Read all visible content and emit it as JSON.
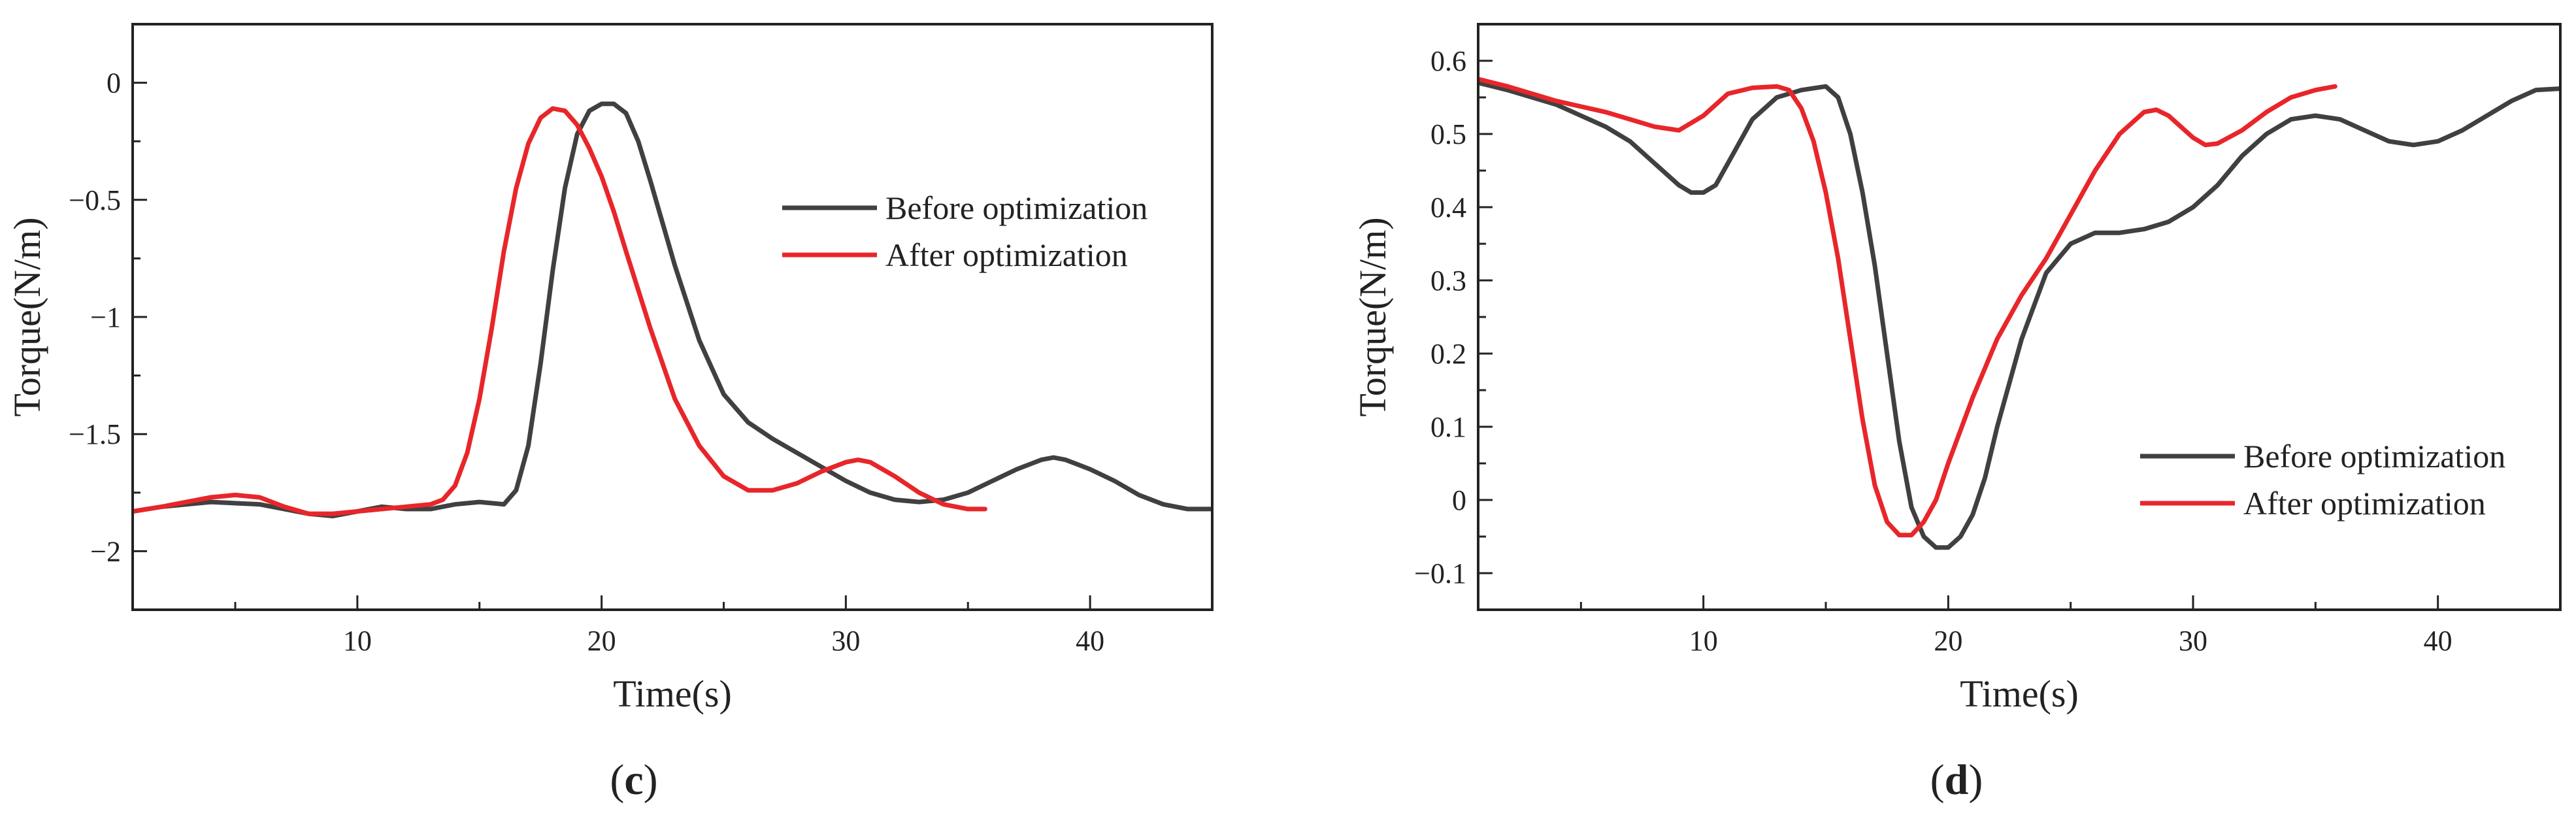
{
  "colors": {
    "before": "#404040",
    "after": "#e8262a",
    "axis": "#222222"
  },
  "chart_data": [
    {
      "type": "line",
      "panel": "c",
      "panel_label": {
        "open": "(",
        "letter": "c",
        "close": ")"
      },
      "xlabel": "Time(s)",
      "ylabel": "Torque(N/m)",
      "xlim": [
        0.8,
        45
      ],
      "ylim": [
        -2.25,
        0.25
      ],
      "xticks": [
        10,
        20,
        30,
        40
      ],
      "yticks": [
        0,
        -0.5,
        -1,
        -1.5,
        -2
      ],
      "ytick_labels": [
        "0",
        "−0.5",
        "−1",
        "−1.5",
        "−2"
      ],
      "legend": {
        "position": "upper-right",
        "entries": [
          "Before optimization",
          "After optimization"
        ]
      },
      "series": [
        {
          "name": "Before optimization",
          "x": [
            0.8,
            2,
            4,
            6,
            8,
            9,
            10,
            11,
            12,
            13,
            14,
            15,
            16,
            16.5,
            17,
            17.5,
            18,
            18.5,
            19,
            19.5,
            20,
            20.5,
            21,
            21.5,
            22,
            23,
            24,
            25,
            26,
            27,
            28,
            29,
            30,
            31,
            32,
            33,
            34,
            35,
            36,
            37,
            38,
            38.5,
            39,
            40,
            41,
            42,
            43,
            44,
            45
          ],
          "y": [
            -1.83,
            -1.81,
            -1.79,
            -1.8,
            -1.84,
            -1.85,
            -1.83,
            -1.81,
            -1.82,
            -1.82,
            -1.8,
            -1.79,
            -1.8,
            -1.74,
            -1.55,
            -1.2,
            -0.8,
            -0.45,
            -0.22,
            -0.12,
            -0.09,
            -0.09,
            -0.13,
            -0.25,
            -0.42,
            -0.78,
            -1.1,
            -1.33,
            -1.45,
            -1.52,
            -1.58,
            -1.64,
            -1.7,
            -1.75,
            -1.78,
            -1.79,
            -1.78,
            -1.75,
            -1.7,
            -1.65,
            -1.61,
            -1.6,
            -1.61,
            -1.65,
            -1.7,
            -1.76,
            -1.8,
            -1.82,
            -1.82
          ]
        },
        {
          "name": "After optimization",
          "x": [
            0.8,
            2,
            3,
            4,
            5,
            6,
            7,
            8,
            9,
            10,
            11,
            12,
            13,
            13.5,
            14,
            14.5,
            15,
            15.5,
            16,
            16.5,
            17,
            17.5,
            18,
            18.5,
            19,
            19.5,
            20,
            20.5,
            21,
            22,
            23,
            24,
            25,
            26,
            27,
            28,
            29,
            30,
            30.5,
            31,
            32,
            33,
            34,
            35,
            35.7
          ],
          "y": [
            -1.83,
            -1.81,
            -1.79,
            -1.77,
            -1.76,
            -1.77,
            -1.81,
            -1.84,
            -1.84,
            -1.83,
            -1.82,
            -1.81,
            -1.8,
            -1.78,
            -1.72,
            -1.58,
            -1.35,
            -1.05,
            -0.72,
            -0.45,
            -0.26,
            -0.15,
            -0.11,
            -0.12,
            -0.18,
            -0.28,
            -0.4,
            -0.55,
            -0.72,
            -1.05,
            -1.35,
            -1.55,
            -1.68,
            -1.74,
            -1.74,
            -1.71,
            -1.66,
            -1.62,
            -1.61,
            -1.62,
            -1.68,
            -1.75,
            -1.8,
            -1.82,
            -1.82
          ]
        }
      ]
    },
    {
      "type": "line",
      "panel": "d",
      "panel_label": {
        "open": "(",
        "letter": "d",
        "close": ")"
      },
      "xlabel": "Time(s)",
      "ylabel": "Torque(N/m)",
      "xlim": [
        0.8,
        45
      ],
      "ylim": [
        -0.15,
        0.65
      ],
      "xticks": [
        10,
        20,
        30,
        40
      ],
      "yticks": [
        0.6,
        0.5,
        0.4,
        0.3,
        0.2,
        0.1,
        0,
        -0.1
      ],
      "ytick_labels": [
        "0.6",
        "0.5",
        "0.4",
        "0.3",
        "0.2",
        "0.1",
        "0",
        "−0.1"
      ],
      "legend": {
        "position": "lower-right",
        "entries": [
          "Before optimization",
          "After optimization"
        ]
      },
      "series": [
        {
          "name": "Before optimization",
          "x": [
            0.8,
            2,
            4,
            6,
            7,
            8,
            9,
            9.5,
            10,
            10.5,
            11,
            12,
            13,
            14,
            15,
            15.5,
            16,
            16.5,
            17,
            17.5,
            18,
            18.5,
            19,
            19.5,
            20,
            20.5,
            21,
            21.5,
            22,
            23,
            24,
            25,
            26,
            27,
            28,
            29,
            30,
            31,
            32,
            33,
            34,
            35,
            36,
            37,
            38,
            39,
            40,
            41,
            42,
            43,
            44,
            45
          ],
          "y": [
            0.57,
            0.56,
            0.54,
            0.51,
            0.49,
            0.46,
            0.43,
            0.42,
            0.42,
            0.43,
            0.46,
            0.52,
            0.55,
            0.56,
            0.565,
            0.55,
            0.5,
            0.42,
            0.32,
            0.2,
            0.08,
            -0.01,
            -0.05,
            -0.065,
            -0.065,
            -0.05,
            -0.02,
            0.03,
            0.1,
            0.22,
            0.31,
            0.35,
            0.365,
            0.365,
            0.37,
            0.38,
            0.4,
            0.43,
            0.47,
            0.5,
            0.52,
            0.525,
            0.52,
            0.505,
            0.49,
            0.485,
            0.49,
            0.505,
            0.525,
            0.545,
            0.56,
            0.562
          ]
        },
        {
          "name": "After optimization",
          "x": [
            0.8,
            2,
            4,
            6,
            8,
            9,
            10,
            11,
            12,
            13,
            13.5,
            14,
            14.5,
            15,
            15.5,
            16,
            16.5,
            17,
            17.5,
            18,
            18.5,
            19,
            19.5,
            20,
            21,
            22,
            23,
            24,
            25,
            26,
            27,
            28,
            28.5,
            29,
            30,
            30.5,
            31,
            32,
            33,
            34,
            35,
            35.8
          ],
          "y": [
            0.575,
            0.565,
            0.545,
            0.53,
            0.51,
            0.505,
            0.525,
            0.555,
            0.563,
            0.565,
            0.56,
            0.535,
            0.49,
            0.42,
            0.33,
            0.22,
            0.11,
            0.02,
            -0.03,
            -0.048,
            -0.048,
            -0.03,
            0.0,
            0.05,
            0.14,
            0.22,
            0.28,
            0.33,
            0.39,
            0.45,
            0.5,
            0.53,
            0.533,
            0.525,
            0.495,
            0.485,
            0.487,
            0.505,
            0.53,
            0.55,
            0.56,
            0.565
          ]
        }
      ]
    }
  ]
}
